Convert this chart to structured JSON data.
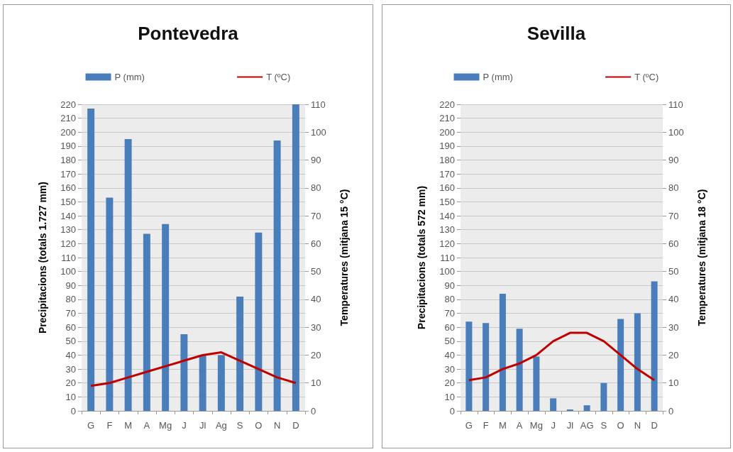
{
  "chart_data": [
    {
      "type": "bar",
      "title": "Pontevedra",
      "categories": [
        "G",
        "F",
        "M",
        "A",
        "Mg",
        "J",
        "Jl",
        "Ag",
        "S",
        "O",
        "N",
        "D"
      ],
      "series": [
        {
          "name": "P (mm)",
          "color": "#4a7ebb",
          "values": [
            217,
            153,
            195,
            127,
            134,
            55,
            40,
            40,
            82,
            128,
            194,
            220
          ]
        },
        {
          "name": "T (ºC)",
          "type": "line",
          "axis": "y2",
          "color": "#c00000",
          "values": [
            9,
            10,
            12,
            14,
            16,
            18,
            20,
            21,
            18,
            15,
            12,
            10
          ]
        }
      ],
      "ylabel": "Precipitacions (totals 1.727 mm)",
      "y2label": "Temperatures (mitjana 15 °C)",
      "ylim": [
        0,
        220
      ],
      "yticks": [
        0,
        10,
        20,
        30,
        40,
        50,
        60,
        70,
        80,
        90,
        100,
        110,
        120,
        130,
        140,
        150,
        160,
        170,
        180,
        190,
        200,
        210,
        220
      ],
      "y2lim": [
        0,
        110
      ],
      "y2ticks": [
        0,
        10,
        20,
        30,
        40,
        50,
        60,
        70,
        80,
        90,
        100,
        110
      ],
      "grid": "y",
      "legend": "top",
      "marker": "none"
    },
    {
      "type": "bar",
      "title": "Sevilla",
      "categories": [
        "G",
        "F",
        "M",
        "A",
        "Mg",
        "J",
        "Jl",
        "AG",
        "S",
        "O",
        "N",
        "D"
      ],
      "series": [
        {
          "name": "P (mm)",
          "color": "#4a7ebb",
          "values": [
            64,
            63,
            84,
            59,
            39,
            9,
            1,
            4,
            20,
            66,
            70,
            93
          ]
        },
        {
          "name": "T (ºC)",
          "type": "line",
          "axis": "y2",
          "color": "#c00000",
          "values": [
            11,
            12,
            15,
            17,
            20,
            25,
            28,
            28,
            25,
            20,
            15,
            11
          ]
        }
      ],
      "ylabel": "Precipitacions (totals 572 mm)",
      "y2label": "Temperatures (mitjana 18 °C)",
      "ylim": [
        0,
        220
      ],
      "yticks": [
        0,
        10,
        20,
        30,
        40,
        50,
        60,
        70,
        80,
        90,
        100,
        110,
        120,
        130,
        140,
        150,
        160,
        170,
        180,
        190,
        200,
        210,
        220
      ],
      "y2lim": [
        0,
        110
      ],
      "y2ticks": [
        0,
        10,
        20,
        30,
        40,
        50,
        60,
        70,
        80,
        90,
        100,
        110
      ],
      "grid": "y",
      "legend": "top",
      "marker": "none"
    }
  ]
}
